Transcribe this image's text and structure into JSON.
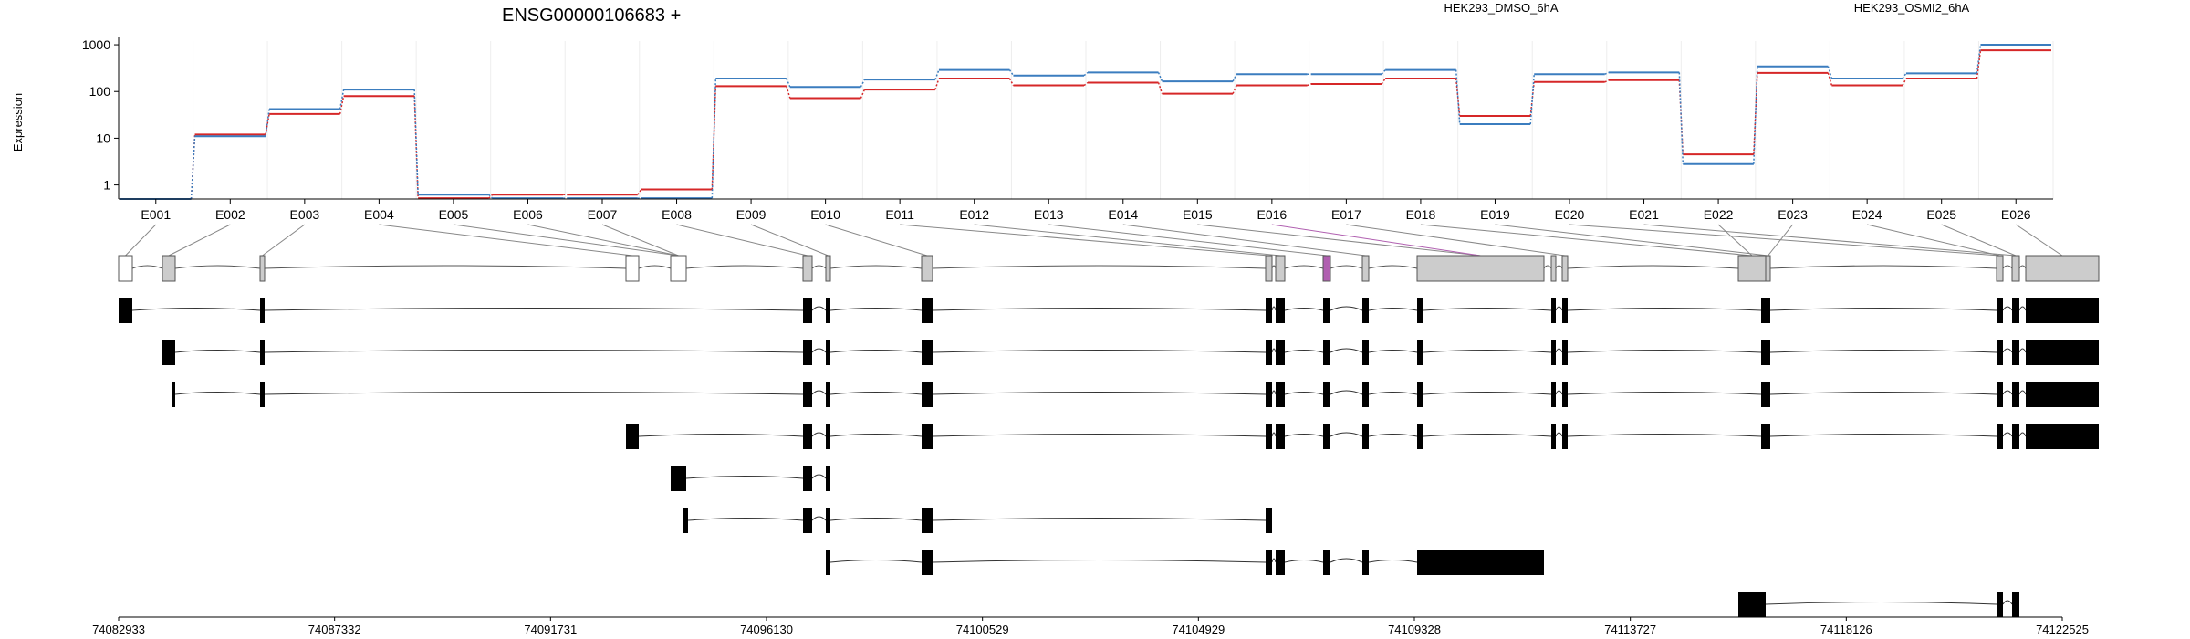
{
  "chart_data": {
    "type": "line",
    "title": "ENSG00000106683 +",
    "ylabel": "Expression",
    "y_scale": "log",
    "ylim": [
      0.5,
      1200
    ],
    "y_ticks": [
      1,
      10,
      100,
      1000
    ],
    "y_tick_labels": [
      "1",
      "10",
      "100",
      "1000"
    ],
    "categories": [
      "E001",
      "E002",
      "E003",
      "E004",
      "E005",
      "E006",
      "E007",
      "E008",
      "E009",
      "E010",
      "E011",
      "E012",
      "E013",
      "E014",
      "E015",
      "E016",
      "E017",
      "E018",
      "E019",
      "E020",
      "E021",
      "E022",
      "E023",
      "E024",
      "E025",
      "E026"
    ],
    "series": [
      {
        "name": "HEK293_DMSO_6hA",
        "color": "#d62728",
        "values": [
          0.5,
          12,
          33,
          80,
          0.52,
          0.62,
          0.62,
          0.8,
          130,
          72,
          110,
          190,
          135,
          155,
          90,
          135,
          145,
          190,
          30,
          160,
          175,
          4.5,
          250,
          135,
          190,
          760
        ]
      },
      {
        "name": "HEK293_OSMI2_6hA",
        "color": "#3b7dbf",
        "values": [
          0.5,
          11,
          42,
          110,
          0.62,
          0.52,
          0.52,
          0.52,
          190,
          125,
          180,
          290,
          220,
          255,
          165,
          235,
          235,
          290,
          20,
          235,
          255,
          2.8,
          345,
          190,
          245,
          1000
        ]
      }
    ],
    "genome_axis": {
      "labels": [
        "74082933",
        "74087332",
        "74091731",
        "74096130",
        "74100529",
        "74104929",
        "74109328",
        "74113727",
        "74118126",
        "74122525"
      ]
    }
  }
}
